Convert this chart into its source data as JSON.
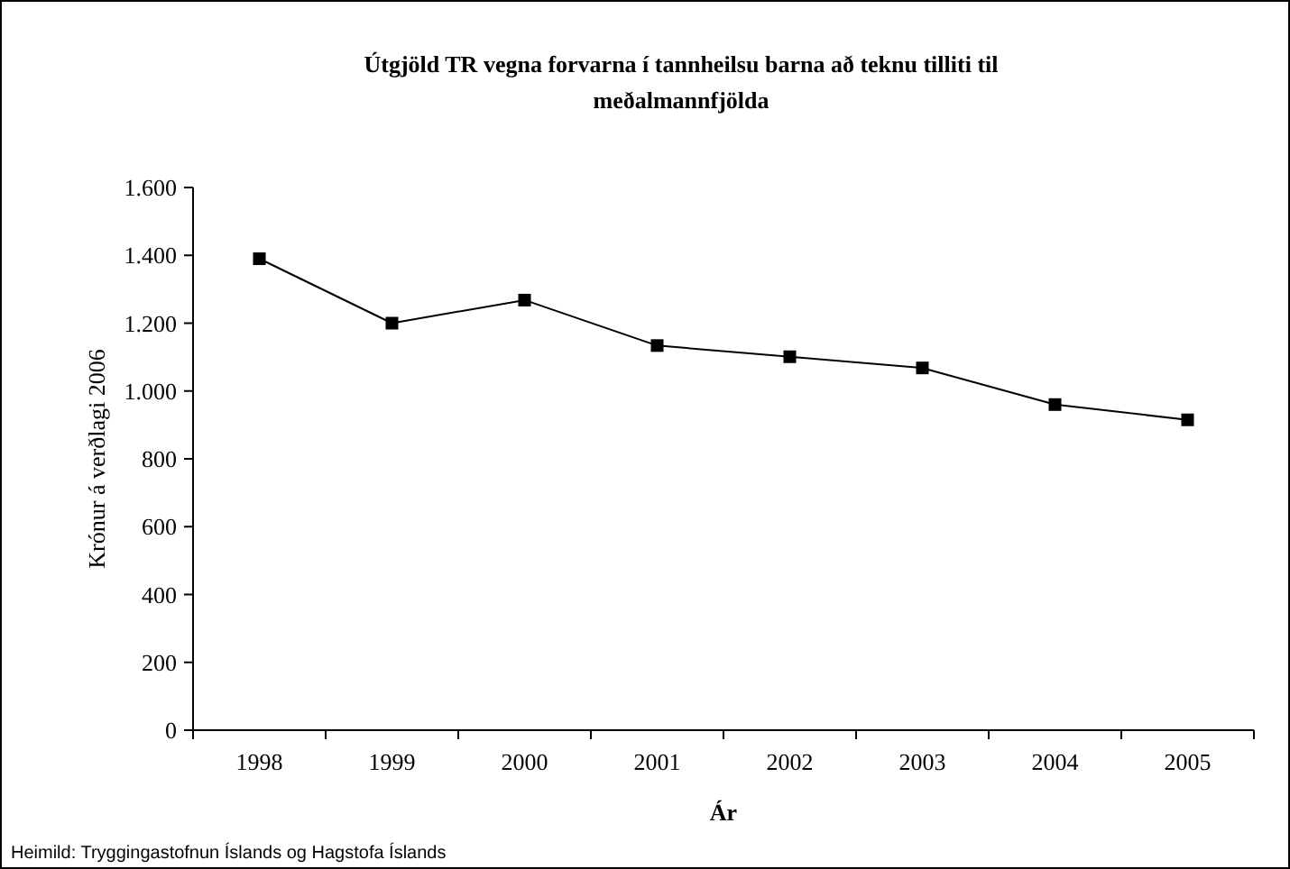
{
  "chart_data": {
    "type": "line",
    "title": "Útgjöld TR vegna forvarna í tannheilsu barna að teknu tilliti til meðalmannfjölda",
    "xlabel": "Ár",
    "ylabel": "Krónur á verðlagi 2006",
    "categories": [
      "1998",
      "1999",
      "2000",
      "2001",
      "2002",
      "2003",
      "2004",
      "2005"
    ],
    "series": [
      {
        "color": "#000000",
        "values": [
          1390,
          1200,
          1268,
          1134,
          1101,
          1068,
          960,
          915
        ]
      }
    ],
    "ylim": [
      0,
      1600
    ],
    "yticks": [
      {
        "value": 0,
        "label": "0"
      },
      {
        "value": 200,
        "label": "200"
      },
      {
        "value": 400,
        "label": "400"
      },
      {
        "value": 600,
        "label": "600"
      },
      {
        "value": 800,
        "label": "800"
      },
      {
        "value": 1000,
        "label": "1.000"
      },
      {
        "value": 1200,
        "label": "1.200"
      },
      {
        "value": 1400,
        "label": "1.400"
      },
      {
        "value": 1600,
        "label": "1.600"
      }
    ],
    "marker": "square",
    "line_style": "solid",
    "grid": false,
    "annotations": [
      "Heimild: Tryggingastofnun Íslands og Hagstofa Íslands"
    ]
  }
}
